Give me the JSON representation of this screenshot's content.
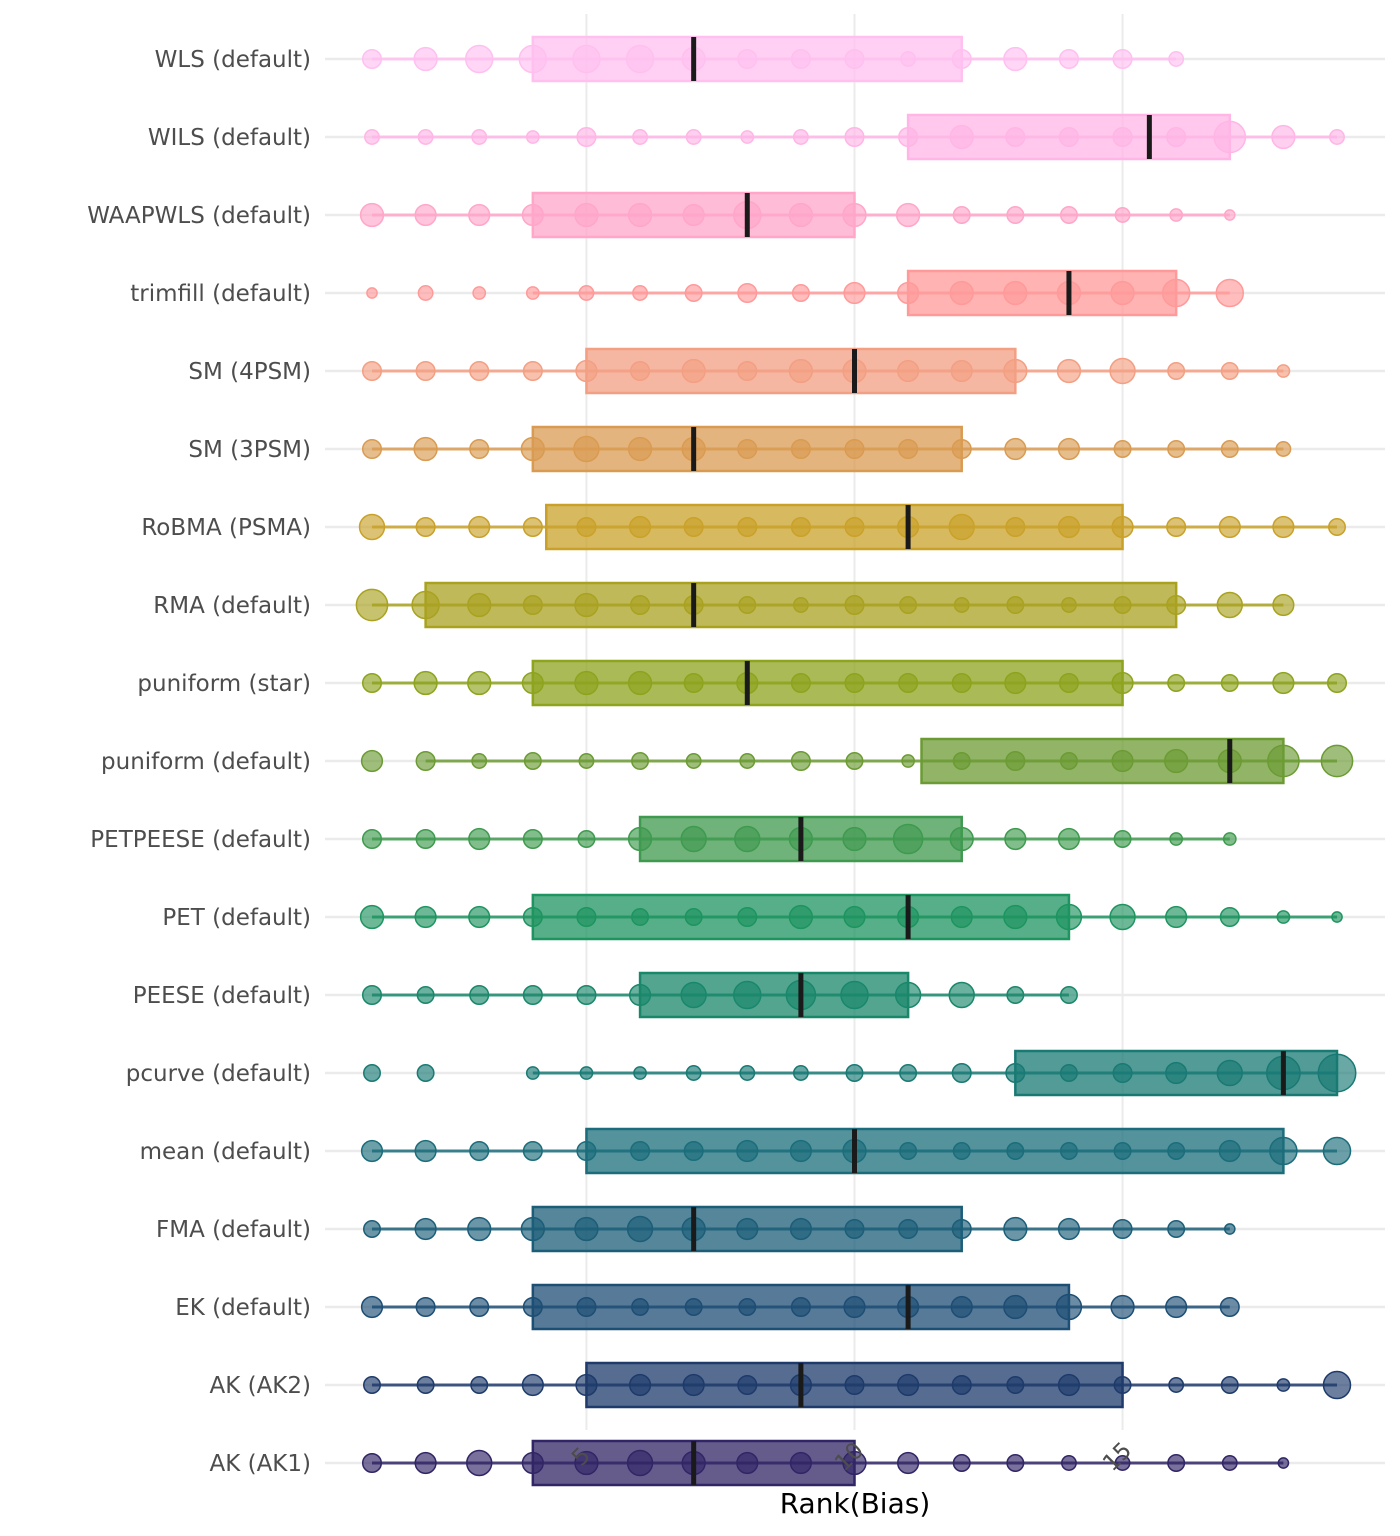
{
  "chart_data": {
    "type": "boxplot-dotplot",
    "title": "",
    "xlabel": "Rank(Bias)",
    "ylabel": "",
    "xlim": [
      1,
      19
    ],
    "x_ticks": [
      5,
      10,
      15
    ],
    "x_tick_labels": [
      "5",
      "10",
      "15"
    ],
    "x_tick_rotation_deg": -45,
    "grid": true,
    "legend": "none",
    "rank_values": [
      1,
      2,
      3,
      4,
      5,
      6,
      7,
      8,
      9,
      10,
      11,
      12,
      13,
      14,
      15,
      16,
      17,
      18,
      19
    ],
    "series": [
      {
        "name": "WLS (default)",
        "color": "#FFC0F0",
        "q1": 4,
        "median": 7,
        "q3": 12,
        "line_min": 1,
        "line_max": 16,
        "sizes": [
          3,
          4,
          5,
          5,
          5,
          5,
          4,
          3,
          3,
          3,
          2,
          3,
          4,
          3,
          3,
          2,
          0,
          0,
          0
        ]
      },
      {
        "name": "WILS (default)",
        "color": "#FFB6E6",
        "q1": 11,
        "median": 15.5,
        "q3": 17,
        "line_min": 1,
        "line_max": 19,
        "sizes": [
          2,
          2,
          2,
          1.5,
          3,
          2,
          2,
          1.5,
          2,
          3,
          3,
          4,
          3,
          3,
          3,
          3,
          6,
          4,
          2
        ]
      },
      {
        "name": "WAAPWLS (default)",
        "color": "#FFA6C9",
        "q1": 4,
        "median": 8,
        "q3": 10,
        "line_min": 1,
        "line_max": 17,
        "sizes": [
          4,
          3.5,
          3.5,
          3.5,
          4,
          4,
          3.5,
          5,
          4,
          4,
          4,
          2.5,
          2.5,
          2.5,
          2,
          1.5,
          1
        ]
      },
      {
        "name": "trimfill (default)",
        "color": "#FF9A9A",
        "q1": 11,
        "median": 14,
        "q3": 16,
        "line_min": 4,
        "line_max": 17,
        "sizes": [
          1,
          2,
          1.5,
          1.5,
          2,
          2,
          2.5,
          3,
          2.5,
          3.5,
          3.5,
          4,
          4,
          4,
          4,
          5,
          5,
          0,
          0
        ]
      },
      {
        "name": "SM (4PSM)",
        "color": "#F39F83",
        "q1": 5,
        "median": 10,
        "q3": 13,
        "line_min": 1,
        "line_max": 18,
        "sizes": [
          3,
          3,
          3,
          3,
          3.5,
          3,
          4,
          3,
          4,
          4,
          3.5,
          3.5,
          4,
          4,
          4.5,
          2.5,
          2.5,
          1.5
        ]
      },
      {
        "name": "SM (3PSM)",
        "color": "#D99B52",
        "q1": 4,
        "median": 7,
        "q3": 12,
        "line_min": 1,
        "line_max": 18,
        "sizes": [
          3,
          4,
          3,
          4,
          4.5,
          4,
          4,
          3,
          3,
          3,
          3,
          3,
          3.5,
          3.5,
          2.5,
          2.5,
          2.5,
          2
        ]
      },
      {
        "name": "RoBMA (PSMA)",
        "color": "#C9A12A",
        "q1": 4.25,
        "median": 11,
        "q3": 15,
        "line_min": 1,
        "line_max": 19,
        "sizes": [
          4.5,
          3,
          3.5,
          3,
          3,
          3.5,
          3,
          3,
          3,
          3,
          3.5,
          4.5,
          3,
          3.5,
          3.5,
          3,
          3.5,
          3.5,
          2.5
        ]
      },
      {
        "name": "RMA (default)",
        "color": "#A9A221",
        "q1": 2,
        "median": 7,
        "q3": 16,
        "line_min": 1,
        "line_max": 18,
        "sizes": [
          6,
          5,
          4,
          3,
          4,
          3,
          3,
          2.5,
          2,
          3,
          2.5,
          2,
          2.5,
          2,
          2.5,
          3,
          4.5,
          3.5
        ]
      },
      {
        "name": "puniform (star)",
        "color": "#8EA31E",
        "q1": 4,
        "median": 8,
        "q3": 15,
        "line_min": 1,
        "line_max": 19,
        "sizes": [
          3,
          4,
          4,
          3.5,
          4,
          4,
          3,
          3.5,
          3,
          3,
          3,
          3,
          3.5,
          3,
          3.5,
          2.5,
          2.5,
          3.5,
          3
        ]
      },
      {
        "name": "puniform (default)",
        "color": "#6C9B34",
        "q1": 11.25,
        "median": 17,
        "q3": 18,
        "line_min": 2,
        "line_max": 19,
        "sizes": [
          3.5,
          3,
          2,
          2.5,
          2,
          2.5,
          2,
          2,
          3,
          2.5,
          1.5,
          2.5,
          3,
          2.5,
          3.5,
          4,
          4,
          6,
          6
        ]
      },
      {
        "name": "PETPEESE (default)",
        "color": "#3F9A4F",
        "q1": 6,
        "median": 9,
        "q3": 12,
        "line_min": 1,
        "line_max": 17,
        "sizes": [
          3,
          3,
          3.5,
          3,
          2.5,
          4,
          4.5,
          4.5,
          4,
          4,
          5.5,
          4,
          3.5,
          3.5,
          2.5,
          1.5,
          1.5
        ]
      },
      {
        "name": "PET (default)",
        "color": "#1E9460",
        "q1": 4,
        "median": 11,
        "q3": 14,
        "line_min": 1,
        "line_max": 19,
        "sizes": [
          4,
          3.5,
          3.5,
          3,
          3,
          2.5,
          2.5,
          3,
          4,
          3.5,
          3.5,
          3.5,
          4,
          4.5,
          4.5,
          3.5,
          3,
          1.5,
          1
        ]
      },
      {
        "name": "PEESE (default)",
        "color": "#1A876B",
        "q1": 6,
        "median": 9,
        "q3": 11,
        "line_min": 1,
        "line_max": 14,
        "sizes": [
          3,
          2.5,
          3,
          3,
          3,
          3.5,
          4.5,
          5,
          5.5,
          5,
          4.5,
          4.5,
          2.5,
          2.5
        ]
      },
      {
        "name": "pcurve (default)",
        "color": "#197A74",
        "q1": 13,
        "median": 18,
        "q3": 19,
        "line_min": 4,
        "line_max": 19,
        "sizes": [
          2.5,
          2.5,
          0,
          1.5,
          1.5,
          1.5,
          2,
          2,
          2,
          2.5,
          2.5,
          3,
          3,
          2.5,
          3,
          3.5,
          4.5,
          6.5,
          7.5
        ]
      },
      {
        "name": "mean (default)",
        "color": "#1B6D7B",
        "q1": 5,
        "median": 10,
        "q3": 18,
        "line_min": 1,
        "line_max": 19,
        "sizes": [
          3.5,
          3.5,
          3,
          3,
          3,
          3,
          3,
          3.5,
          3.5,
          4,
          2.5,
          2.5,
          2.5,
          2.5,
          2.5,
          2.5,
          3.5,
          5,
          5
        ]
      },
      {
        "name": "FMA (default)",
        "color": "#1C5E78",
        "q1": 4,
        "median": 7,
        "q3": 12,
        "line_min": 1,
        "line_max": 17,
        "sizes": [
          2.5,
          3.5,
          4,
          4,
          4,
          4.5,
          4,
          3.5,
          3.5,
          3,
          3,
          3,
          4,
          3.5,
          3,
          2.5,
          1
        ]
      },
      {
        "name": "EK (default)",
        "color": "#1D4E74",
        "q1": 4,
        "median": 11,
        "q3": 14,
        "line_min": 1,
        "line_max": 17,
        "sizes": [
          3.5,
          3,
          3,
          3,
          3,
          2.5,
          2.5,
          2.5,
          3,
          3.5,
          3.5,
          3.5,
          4,
          4.5,
          4,
          3.5,
          3
        ]
      },
      {
        "name": "AK (AK2)",
        "color": "#1E3B6B",
        "q1": 5,
        "median": 9,
        "q3": 15,
        "line_min": 1,
        "line_max": 19,
        "sizes": [
          2.5,
          2.5,
          2.5,
          3.5,
          3.5,
          3.5,
          3.5,
          3,
          3.5,
          3,
          3.5,
          3,
          2.5,
          3.5,
          2.5,
          2,
          2.5,
          1.5,
          5
        ]
      },
      {
        "name": "AK (AK1)",
        "color": "#312565",
        "q1": 4,
        "median": 7,
        "q3": 10,
        "line_min": 1,
        "line_max": 18,
        "sizes": [
          3,
          3.5,
          4.5,
          3.5,
          4,
          4.5,
          4,
          3.5,
          3.5,
          4,
          3.5,
          2.5,
          2.5,
          2,
          2,
          2.5,
          2,
          1
        ]
      }
    ]
  }
}
